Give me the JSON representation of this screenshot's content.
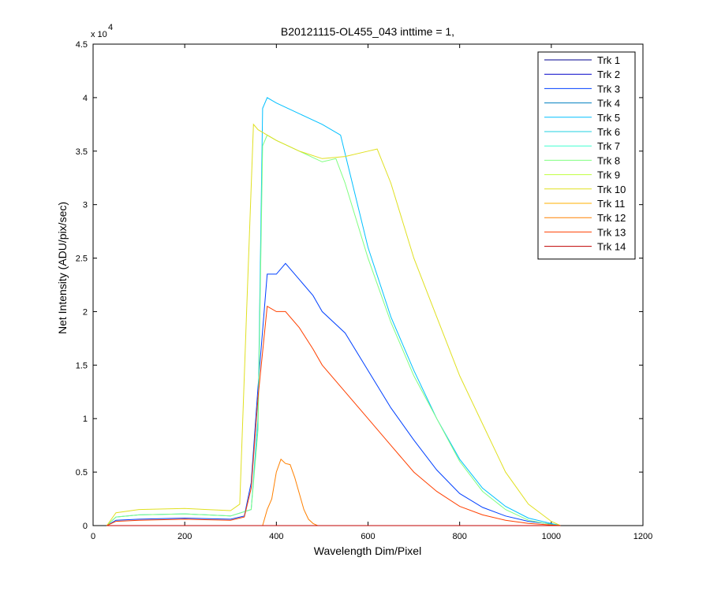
{
  "chart_data": {
    "type": "line",
    "title": "B20121115-OL455_043 inttime = 1,",
    "xlabel": "Wavelength Dim/Pixel",
    "ylabel": "Net Intensity (ADU/pix/sec)",
    "y_exponent_label": "x 10",
    "y_exponent_power": "4",
    "xlim": [
      0,
      1200
    ],
    "ylim": [
      0,
      45000
    ],
    "x_ticks": [
      0,
      200,
      400,
      600,
      800,
      1000,
      1200
    ],
    "x_tick_labels": [
      "0",
      "200",
      "400",
      "600",
      "800",
      "1000",
      "1200"
    ],
    "y_ticks": [
      0,
      5000,
      10000,
      15000,
      20000,
      25000,
      30000,
      35000,
      40000,
      45000
    ],
    "y_tick_labels": [
      "0",
      "0.5",
      "1",
      "1.5",
      "2",
      "2.5",
      "3",
      "3.5",
      "4",
      "4.5"
    ],
    "grid": false,
    "legend_position": "top-right",
    "series": [
      {
        "name": "Trk 1",
        "color": "#00008f",
        "x": [
          30,
          1020
        ],
        "y": [
          0,
          0
        ]
      },
      {
        "name": "Trk 2",
        "color": "#0000c8",
        "x": [
          30,
          1020
        ],
        "y": [
          0,
          0
        ]
      },
      {
        "name": "Trk 3",
        "color": "#0040ff",
        "x": [
          30,
          50,
          100,
          200,
          300,
          330,
          345,
          360,
          380,
          400,
          420,
          450,
          480,
          500,
          550,
          600,
          650,
          700,
          750,
          800,
          850,
          900,
          950,
          1000,
          1020
        ],
        "y": [
          0,
          500,
          600,
          700,
          600,
          900,
          4000,
          13000,
          23500,
          23500,
          24500,
          23000,
          21500,
          20000,
          18000,
          14500,
          11000,
          8000,
          5200,
          3000,
          1700,
          900,
          400,
          150,
          0
        ]
      },
      {
        "name": "Trk 4",
        "color": "#0080c0",
        "x": [
          30,
          1020
        ],
        "y": [
          0,
          0
        ]
      },
      {
        "name": "Trk 5",
        "color": "#00c0ff",
        "x": [
          30,
          50,
          100,
          200,
          300,
          345,
          360,
          370,
          380,
          400,
          450,
          500,
          540,
          560,
          600,
          650,
          700,
          750,
          800,
          850,
          900,
          950,
          1000,
          1020
        ],
        "y": [
          0,
          800,
          1000,
          1100,
          900,
          1500,
          10000,
          39000,
          40000,
          39500,
          38500,
          37500,
          36500,
          33000,
          26000,
          19500,
          14500,
          10000,
          6200,
          3500,
          1800,
          700,
          200,
          0
        ]
      },
      {
        "name": "Trk 6",
        "color": "#20d0e0",
        "x": [
          30,
          1020
        ],
        "y": [
          0,
          0
        ]
      },
      {
        "name": "Trk 7",
        "color": "#40ffd0",
        "x": [
          30,
          1020
        ],
        "y": [
          0,
          0
        ]
      },
      {
        "name": "Trk 8",
        "color": "#80ff80",
        "x": [
          30,
          50,
          100,
          200,
          300,
          345,
          360,
          370,
          380,
          400,
          450,
          500,
          530,
          550,
          600,
          650,
          700,
          750,
          800,
          850,
          900,
          950,
          1000,
          1020
        ],
        "y": [
          0,
          800,
          1000,
          1100,
          900,
          1500,
          9000,
          35500,
          36500,
          36000,
          35000,
          34000,
          34300,
          32000,
          25000,
          19000,
          14000,
          10000,
          6000,
          3200,
          1500,
          500,
          100,
          0
        ]
      },
      {
        "name": "Trk 9",
        "color": "#c0ff40",
        "x": [
          30,
          1020
        ],
        "y": [
          0,
          0
        ]
      },
      {
        "name": "Trk 10",
        "color": "#e0e020",
        "x": [
          30,
          50,
          100,
          200,
          300,
          320,
          335,
          350,
          360,
          380,
          400,
          450,
          500,
          550,
          600,
          620,
          650,
          700,
          750,
          800,
          850,
          900,
          950,
          1000,
          1020
        ],
        "y": [
          0,
          1200,
          1500,
          1600,
          1400,
          2000,
          20000,
          37500,
          37000,
          36500,
          36000,
          35000,
          34300,
          34500,
          35000,
          35200,
          32000,
          25000,
          19500,
          14000,
          9500,
          5000,
          2000,
          400,
          0
        ]
      },
      {
        "name": "Trk 11",
        "color": "#ffb000",
        "x": [
          30,
          1020
        ],
        "y": [
          0,
          0
        ]
      },
      {
        "name": "Trk 12",
        "color": "#ff8000",
        "x": [
          30,
          370,
          380,
          390,
          400,
          410,
          420,
          430,
          440,
          450,
          460,
          470,
          480,
          490,
          1020
        ],
        "y": [
          0,
          0,
          1500,
          2500,
          5000,
          6200,
          5800,
          5700,
          4500,
          3000,
          1500,
          600,
          200,
          0,
          0
        ]
      },
      {
        "name": "Trk 13",
        "color": "#ff4000",
        "x": [
          30,
          50,
          100,
          200,
          300,
          330,
          345,
          360,
          380,
          400,
          420,
          450,
          480,
          500,
          550,
          600,
          650,
          700,
          750,
          800,
          850,
          900,
          950,
          1000,
          1020
        ],
        "y": [
          0,
          400,
          500,
          600,
          500,
          800,
          3500,
          12000,
          20500,
          20000,
          20000,
          18500,
          16500,
          15000,
          12500,
          10000,
          7500,
          5000,
          3200,
          1800,
          1000,
          500,
          200,
          50,
          0
        ]
      },
      {
        "name": "Trk 14",
        "color": "#c00000",
        "x": [
          30,
          1020
        ],
        "y": [
          0,
          0
        ]
      }
    ]
  }
}
